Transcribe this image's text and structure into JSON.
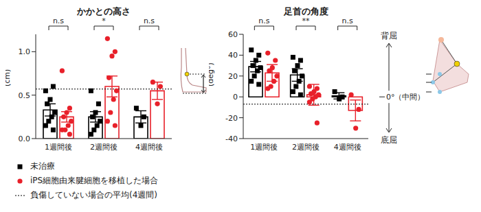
{
  "chart_data": [
    {
      "type": "bar",
      "title": "かかとの高さ",
      "ylabel": "(cm)",
      "categories": [
        "1週間後",
        "2週間後",
        "4週間後"
      ],
      "ylim": [
        0,
        1.2
      ],
      "yticks": [
        {
          "value": 0,
          "label": "0.0"
        },
        {
          "value": 0.5,
          "label": "0.5"
        },
        {
          "value": 1,
          "label": "1.0"
        }
      ],
      "grid": false,
      "significance": [
        "n.s",
        "*",
        "n.s"
      ],
      "reference_line": {
        "value": 0.57,
        "label": "負傷していない場合の平均(4週間)"
      },
      "series": [
        {
          "name": "未治療",
          "color": "#000000",
          "marker": "square",
          "values": [
            0.33,
            0.25,
            0.25
          ],
          "errors": [
            0.07,
            0.06,
            0.07
          ],
          "points": [
            [
              0.55,
              0.6,
              0.45,
              0.4,
              0.3,
              0.25,
              0.2,
              0.15,
              0.1
            ],
            [
              0.55,
              0.4,
              0.3,
              0.25,
              0.2,
              0.15,
              0.1,
              0.05
            ],
            [
              0.35,
              0.25,
              0.15
            ]
          ]
        },
        {
          "name": "iPS細胞由来腱細胞を移植した場合",
          "color": "#e8202a",
          "marker": "circle",
          "values": [
            0.25,
            0.6,
            0.55
          ],
          "errors": [
            0.06,
            0.12,
            0.1
          ],
          "points": [
            [
              0.78,
              0.35,
              0.3,
              0.25,
              0.2,
              0.15,
              0.1,
              0.1,
              0.05
            ],
            [
              1.15,
              1.0,
              0.95,
              0.7,
              0.55,
              0.45,
              0.3,
              0.2,
              0.15
            ],
            [
              0.65,
              0.6,
              0.4
            ]
          ]
        }
      ]
    },
    {
      "type": "bar",
      "title": "足首の角度",
      "ylabel": "(deg°)",
      "categories": [
        "1週間後",
        "2週間後",
        "4週間後"
      ],
      "ylim": [
        -40,
        60
      ],
      "yticks": [
        -40,
        -20,
        0,
        20,
        40,
        60
      ],
      "grid": false,
      "significance": [
        "n.s",
        "**",
        "n.s"
      ],
      "reference_line": {
        "value": -7
      },
      "annotations": [
        "背屈",
        "0°（中間）",
        "底屈"
      ],
      "series": [
        {
          "name": "未治療",
          "color": "#000000",
          "marker": "square",
          "values": [
            29,
            21,
            1
          ],
          "errors": [
            5,
            6,
            3
          ],
          "points": [
            [
              45,
              40,
              35,
              30,
              28,
              25,
              20,
              15,
              12
            ],
            [
              38,
              35,
              30,
              25,
              20,
              15,
              10,
              5,
              2
            ],
            [
              5,
              0,
              -2
            ]
          ]
        },
        {
          "name": "iPS細胞由来腱細胞を移植した場合",
          "color": "#e8202a",
          "marker": "circle",
          "values": [
            23,
            2,
            -13
          ],
          "errors": [
            8,
            10,
            10
          ],
          "points": [
            [
              42,
              35,
              28,
              25,
              20,
              15,
              10,
              8
            ],
            [
              10,
              8,
              5,
              3,
              2,
              0,
              -2,
              -5,
              -25
            ],
            [
              2,
              -12,
              -30
            ]
          ]
        }
      ]
    }
  ]
}
